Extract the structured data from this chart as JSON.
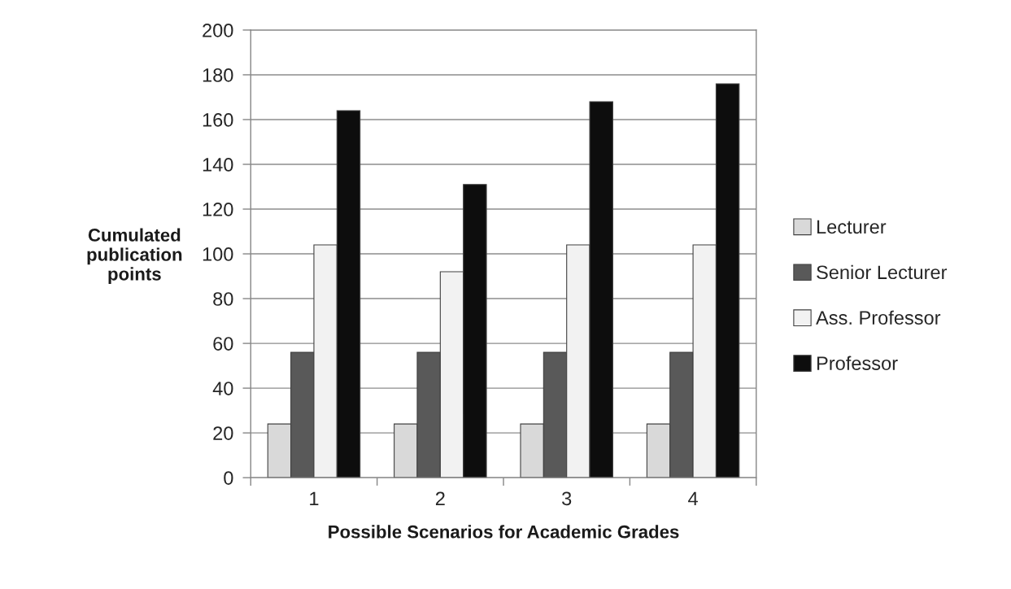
{
  "chart_data": {
    "type": "bar",
    "categories": [
      "1",
      "2",
      "3",
      "4"
    ],
    "xlabel": "Possible Scenarios for Academic Grades",
    "ylabel": "Cumulated\npublication\npoints",
    "ylim": [
      0,
      200
    ],
    "yticks": [
      0,
      20,
      40,
      60,
      80,
      100,
      120,
      140,
      160,
      180,
      200
    ],
    "grid": "y",
    "legend": "right",
    "series": [
      {
        "name": "Lecturer",
        "color": "#d9d9d9",
        "values": [
          24,
          24,
          24,
          24
        ]
      },
      {
        "name": "Senior Lecturer",
        "color": "#595959",
        "values": [
          56,
          56,
          56,
          56
        ]
      },
      {
        "name": "Ass. Professor",
        "color": "#f2f2f2",
        "values": [
          104,
          92,
          104,
          104
        ]
      },
      {
        "name": "Professor",
        "color": "#0d0d0d",
        "values": [
          164,
          131,
          168,
          176
        ]
      }
    ]
  }
}
